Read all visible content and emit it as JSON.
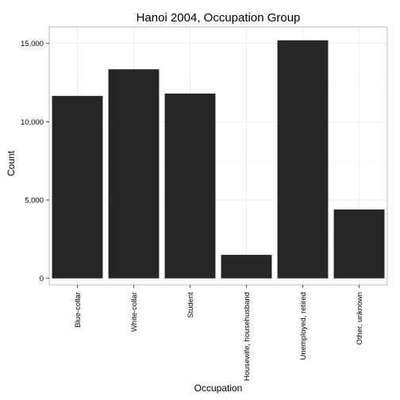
{
  "chart_data": {
    "type": "bar",
    "title": "Hanoi 2004, Occupation Group",
    "xlabel": "Occupation",
    "ylabel": "Count",
    "categories": [
      "Blue-collar",
      "White-collar",
      "Student",
      "Housewife, househusband",
      "Unemployed, retired",
      "Other, unknown"
    ],
    "values": [
      11650,
      13350,
      11800,
      1500,
      15200,
      4400
    ],
    "ylim": [
      -420,
      16050
    ],
    "yticks": [
      0,
      5000,
      10000,
      15000
    ],
    "ytick_labels": [
      "0",
      "5,000",
      "10,000",
      "15,000"
    ],
    "grid": true,
    "bar_color": "#262626"
  }
}
